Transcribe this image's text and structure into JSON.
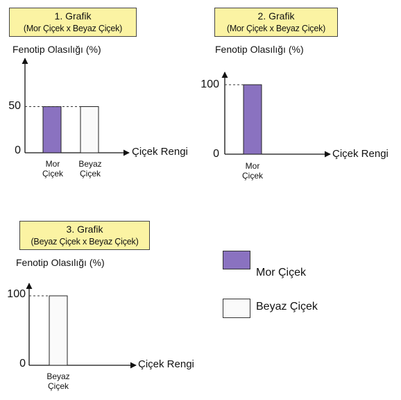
{
  "chart_data": [
    {
      "type": "bar",
      "title": "1. Grafik",
      "subtitle": "(Mor Çiçek x Beyaz Çiçek)",
      "ylabel": "Fenotip Olasılığı (%)",
      "xlabel": "Çiçek Rengi",
      "yticks": [
        "0",
        "50"
      ],
      "ylim": [
        0,
        100
      ],
      "grid": false,
      "categories": [
        {
          "line1": "Mor",
          "line2": "Çiçek"
        },
        {
          "line1": "Beyaz",
          "line2": "Çiçek"
        }
      ],
      "values": [
        50,
        50
      ],
      "colors": [
        "#8a72c0",
        "#fafafa"
      ]
    },
    {
      "type": "bar",
      "title": "2. Grafik",
      "subtitle": "(Mor Çiçek x Beyaz Çiçek)",
      "ylabel": "Fenotip Olasılığı (%)",
      "xlabel": "Çiçek Rengi",
      "yticks": [
        "0",
        "100"
      ],
      "ylim": [
        0,
        100
      ],
      "grid": false,
      "categories": [
        {
          "line1": "Mor",
          "line2": "Çiçek"
        }
      ],
      "values": [
        100
      ],
      "colors": [
        "#8a72c0"
      ]
    },
    {
      "type": "bar",
      "title": "3. Grafik",
      "subtitle": "(Beyaz Çiçek x Beyaz Çiçek)",
      "ylabel": "Fenotip Olasılığı (%)",
      "xlabel": "Çiçek Rengi",
      "yticks": [
        "0",
        "100"
      ],
      "ylim": [
        0,
        100
      ],
      "grid": false,
      "categories": [
        {
          "line1": "Beyaz",
          "line2": "Çiçek"
        }
      ],
      "values": [
        100
      ],
      "colors": [
        "#fafafa"
      ]
    }
  ],
  "legend": [
    {
      "label": "Mor Çiçek",
      "color": "#8a72c0"
    },
    {
      "label": "Beyaz Çiçek",
      "color": "#fafafa"
    }
  ]
}
